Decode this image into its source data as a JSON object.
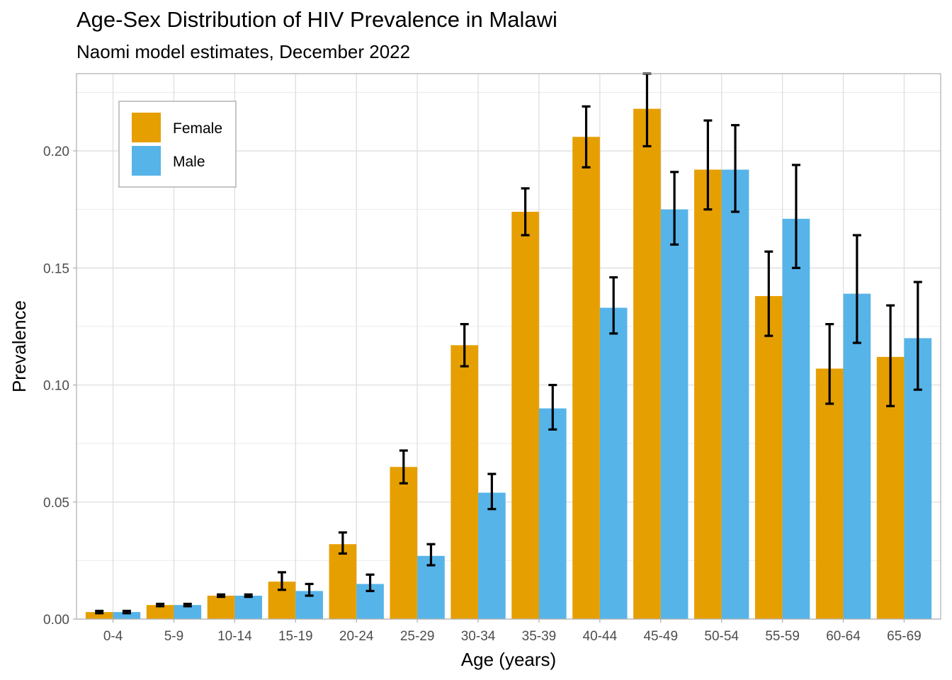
{
  "chart_data": {
    "type": "bar",
    "title": "Age-Sex Distribution of HIV Prevalence in Malawi",
    "subtitle": "Naomi model estimates, December 2022",
    "xlabel": "Age (years)",
    "ylabel": "Prevalence",
    "categories": [
      "0-4",
      "5-9",
      "10-14",
      "15-19",
      "20-24",
      "25-29",
      "30-34",
      "35-39",
      "40-44",
      "45-49",
      "50-54",
      "55-59",
      "60-64",
      "65-69"
    ],
    "series": [
      {
        "name": "Female",
        "color": "#E69F00",
        "values": [
          0.003,
          0.006,
          0.01,
          0.016,
          0.032,
          0.065,
          0.117,
          0.174,
          0.206,
          0.218,
          0.192,
          0.138,
          0.107,
          0.112
        ],
        "lower": [
          0.0025,
          0.0055,
          0.0095,
          0.0125,
          0.028,
          0.058,
          0.108,
          0.164,
          0.193,
          0.202,
          0.175,
          0.121,
          0.092,
          0.091
        ],
        "upper": [
          0.0035,
          0.0065,
          0.0105,
          0.02,
          0.037,
          0.072,
          0.126,
          0.184,
          0.219,
          0.233,
          0.213,
          0.157,
          0.126,
          0.134
        ]
      },
      {
        "name": "Male",
        "color": "#56B4E9",
        "values": [
          0.003,
          0.006,
          0.01,
          0.012,
          0.015,
          0.027,
          0.054,
          0.09,
          0.133,
          0.175,
          0.192,
          0.171,
          0.139,
          0.12
        ],
        "lower": [
          0.0025,
          0.0055,
          0.0095,
          0.01,
          0.012,
          0.023,
          0.047,
          0.081,
          0.122,
          0.16,
          0.174,
          0.15,
          0.118,
          0.098
        ],
        "upper": [
          0.0035,
          0.0065,
          0.0105,
          0.015,
          0.019,
          0.032,
          0.062,
          0.1,
          0.146,
          0.191,
          0.211,
          0.194,
          0.164,
          0.144
        ]
      }
    ],
    "yticks": [
      0.0,
      0.05,
      0.1,
      0.15,
      0.2
    ],
    "ytick_labels": [
      "0.00",
      "0.05",
      "0.10",
      "0.15",
      "0.20"
    ],
    "ylim": [
      0,
      0.233
    ],
    "grid": true,
    "legend_position": "top-left"
  }
}
